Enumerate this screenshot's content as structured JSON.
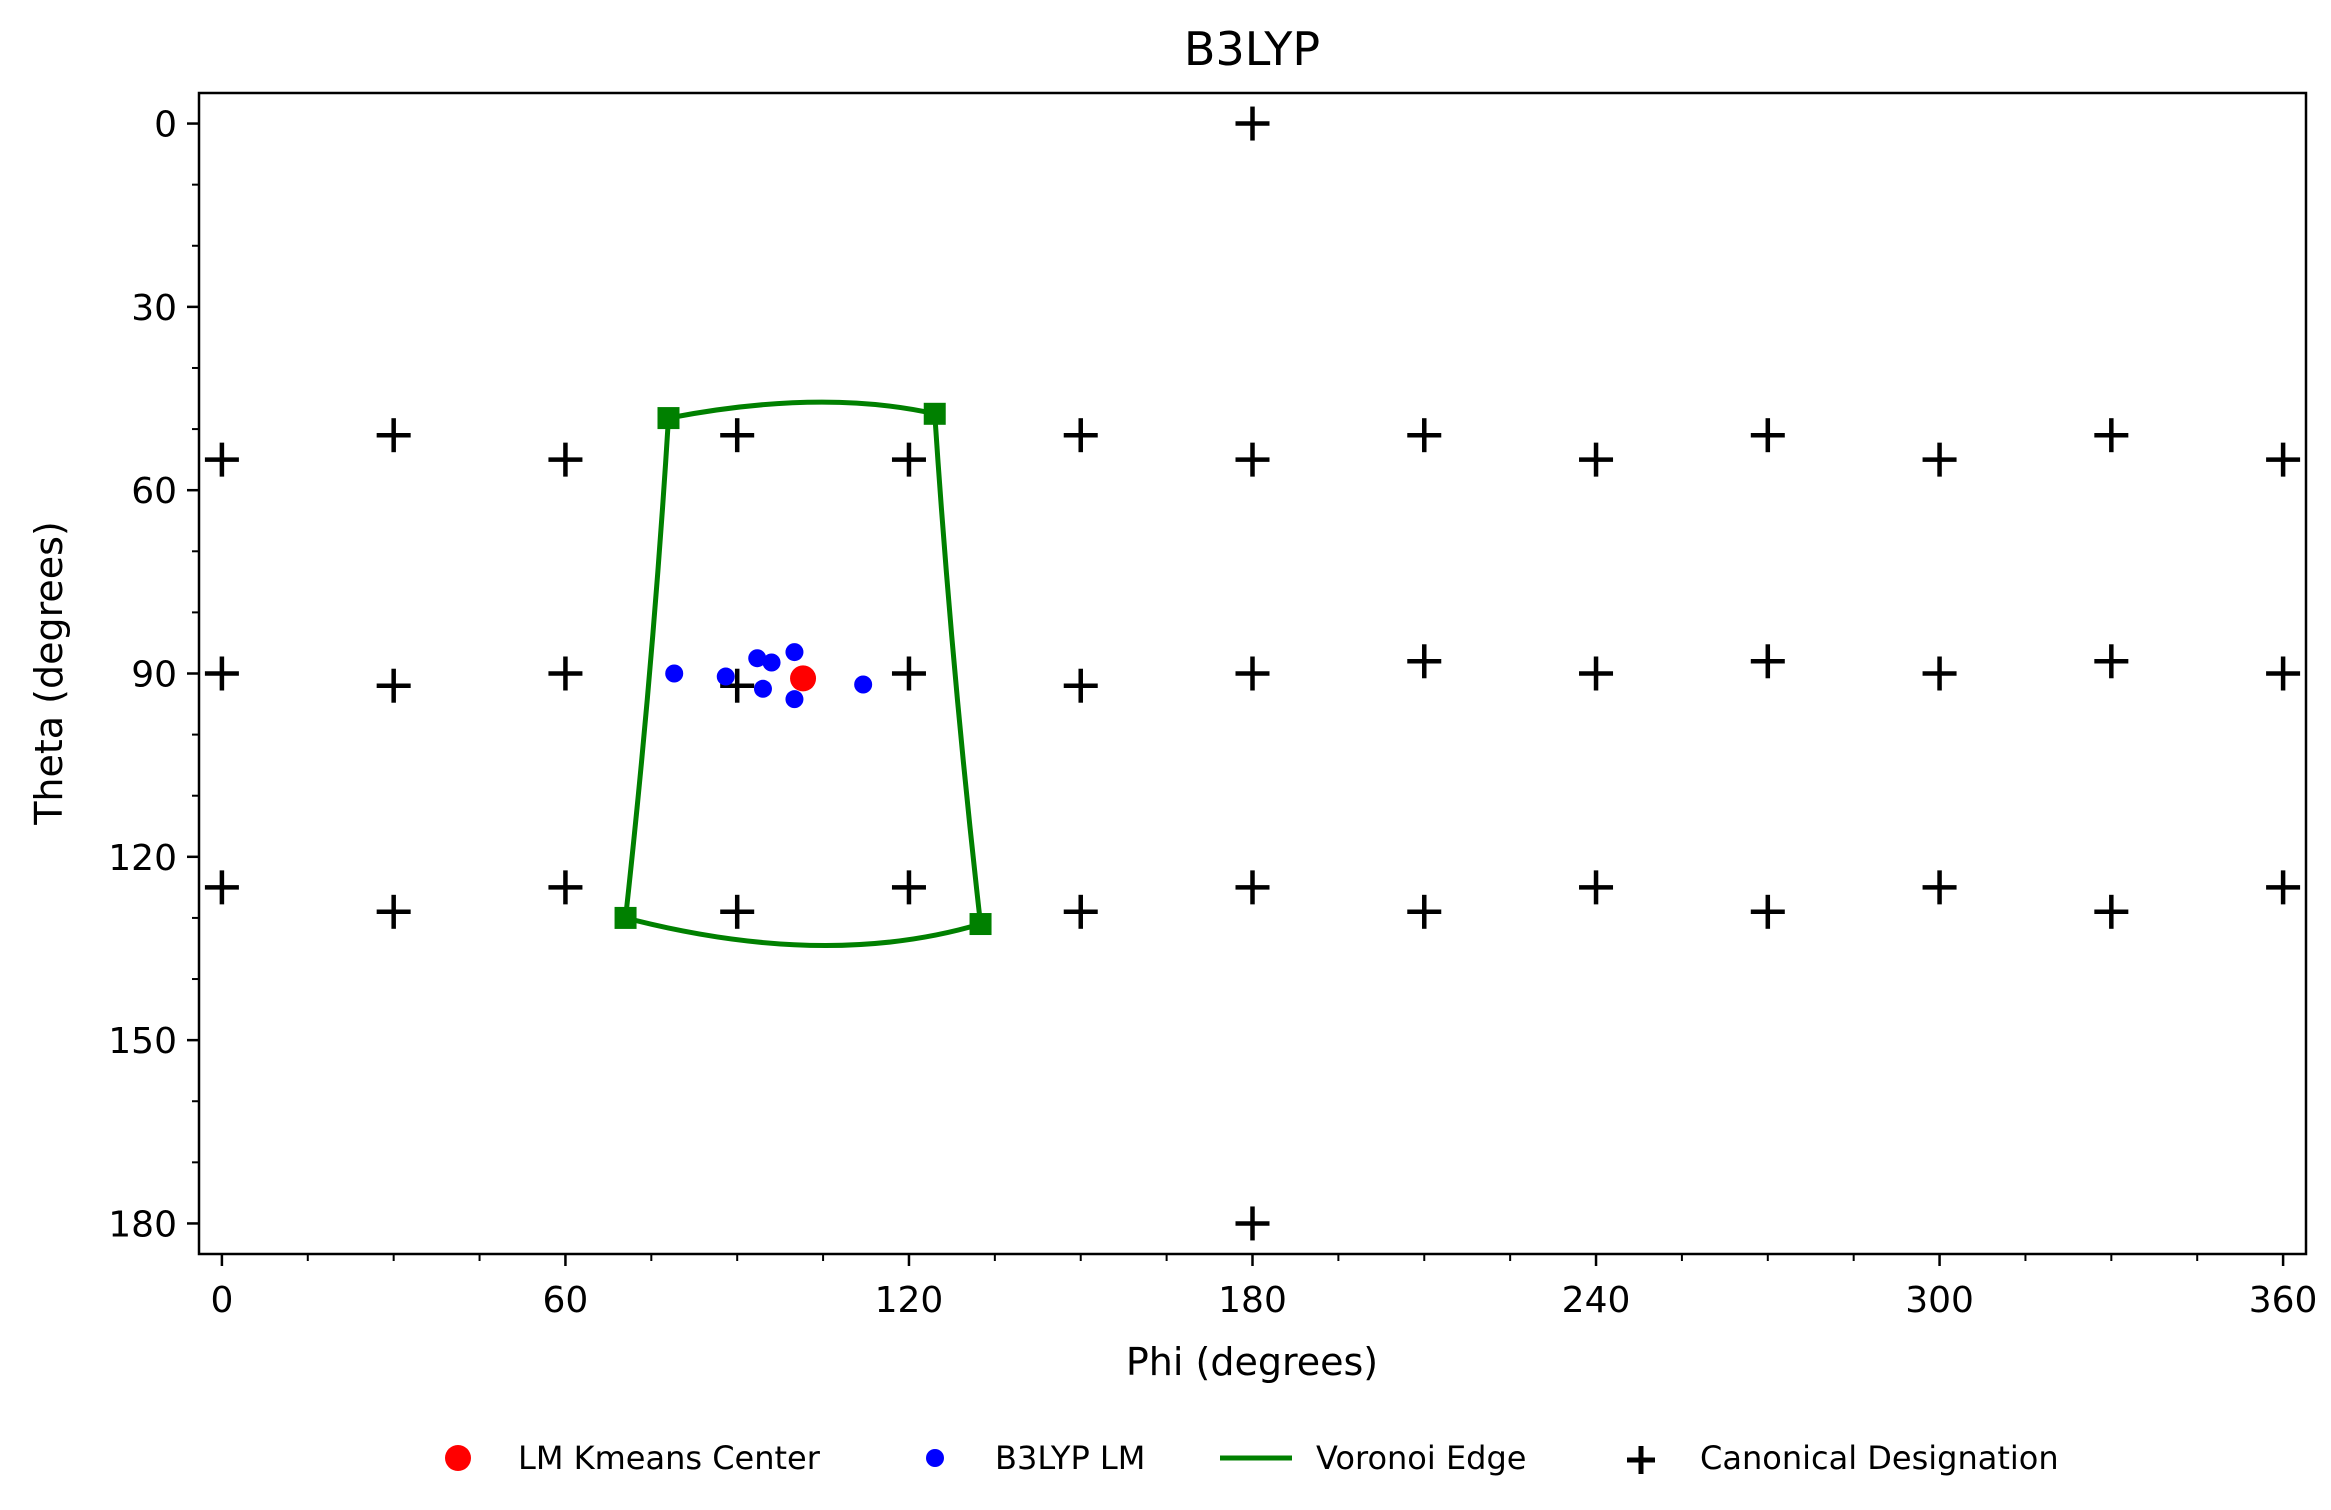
{
  "chart_data": {
    "type": "scatter",
    "title": "B3LYP",
    "xlabel": "Phi (degrees)",
    "ylabel": "Theta (degrees)",
    "xlim": [
      -4,
      364
    ],
    "ylim": [
      185,
      -5
    ],
    "y_inverted": true,
    "grid": false,
    "xticks": [
      0,
      60,
      120,
      180,
      240,
      300,
      360
    ],
    "yticks": [
      0,
      30,
      60,
      90,
      120,
      150,
      180
    ],
    "legend_position": "bottom-center, below axes",
    "series": [
      {
        "name": "LM Kmeans Center",
        "marker": "circle",
        "color": "#ff0000",
        "points": [
          [
            101.5,
            90.8
          ]
        ]
      },
      {
        "name": "B3LYP LM",
        "marker": "circle",
        "color": "#0000ff",
        "points": [
          [
            79,
            90
          ],
          [
            88,
            90.5
          ],
          [
            93.5,
            87.5
          ],
          [
            96,
            88.2
          ],
          [
            94.5,
            92.5
          ],
          [
            100,
            86.5
          ],
          [
            100,
            94.2
          ],
          [
            112,
            91.8
          ]
        ]
      },
      {
        "name": "Voronoi Edge",
        "marker": "square",
        "color": "#008000",
        "vertices": [
          [
            78,
            48.2
          ],
          [
            124.5,
            47.5
          ],
          [
            132.5,
            131
          ],
          [
            70.5,
            130
          ]
        ],
        "top_arc_peak": [
          103,
          45.6
        ],
        "bottom_arc_trough": [
          103.5,
          134.5
        ]
      },
      {
        "name": "Canonical Designation",
        "marker": "plus",
        "color": "#000000",
        "points": [
          [
            180,
            0
          ],
          [
            180,
            180
          ],
          [
            0,
            55
          ],
          [
            30,
            51
          ],
          [
            60,
            55
          ],
          [
            90,
            51
          ],
          [
            120,
            55
          ],
          [
            150,
            51
          ],
          [
            180,
            55
          ],
          [
            210,
            51
          ],
          [
            240,
            55
          ],
          [
            270,
            51
          ],
          [
            300,
            55
          ],
          [
            330,
            51
          ],
          [
            360,
            55
          ],
          [
            0,
            90
          ],
          [
            30,
            92
          ],
          [
            60,
            90
          ],
          [
            90,
            92
          ],
          [
            120,
            90
          ],
          [
            150,
            92
          ],
          [
            180,
            90
          ],
          [
            210,
            88
          ],
          [
            240,
            90
          ],
          [
            270,
            88
          ],
          [
            300,
            90
          ],
          [
            330,
            88
          ],
          [
            360,
            90
          ],
          [
            0,
            125
          ],
          [
            30,
            129
          ],
          [
            60,
            125
          ],
          [
            90,
            129
          ],
          [
            120,
            125
          ],
          [
            150,
            129
          ],
          [
            180,
            125
          ],
          [
            210,
            129
          ],
          [
            240,
            125
          ],
          [
            270,
            129
          ],
          [
            300,
            125
          ],
          [
            330,
            129
          ],
          [
            360,
            125
          ]
        ]
      }
    ]
  }
}
